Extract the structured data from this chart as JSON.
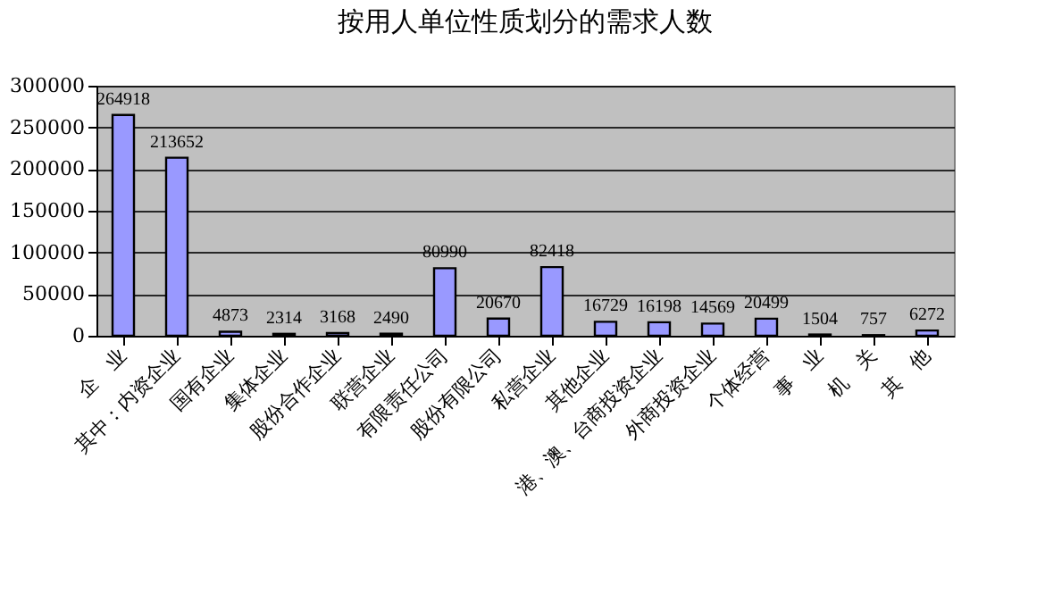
{
  "chart_data": {
    "type": "bar",
    "title": "按用人单位性质划分的需求人数",
    "categories": [
      "企　业",
      "其中：内资企业",
      "国有企业",
      "集体企业",
      "股份合作企业",
      "联营企业",
      "有限责任公司",
      "股份有限公司",
      "私营企业",
      "其他企业",
      "港、澳、台商投资企业",
      "外商投资企业",
      "个体经营",
      "事　业",
      "机　关",
      "其　他"
    ],
    "values": [
      264918,
      213652,
      4873,
      2314,
      3168,
      2490,
      80990,
      20670,
      82418,
      16729,
      16198,
      14569,
      20499,
      1504,
      757,
      6272
    ],
    "color": "#9999ff",
    "ylim": [
      0,
      300000
    ],
    "yticks": [
      0,
      50000,
      100000,
      150000,
      200000,
      250000,
      300000
    ],
    "grid": "y",
    "data_labels": true
  }
}
